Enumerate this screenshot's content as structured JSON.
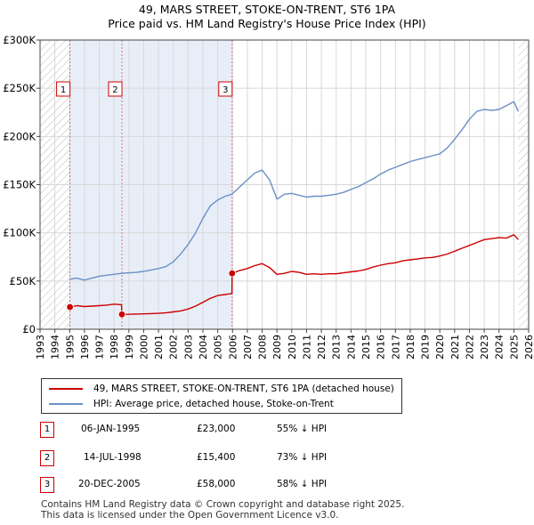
{
  "title": "49, MARS STREET, STOKE-ON-TRENT, ST6 1PA",
  "subtitle": "Price paid vs. HM Land Registry's House Price Index (HPI)",
  "colors": {
    "property": "#cc0000",
    "hpi": "#6a8fc7",
    "shade": "#e8eef8"
  },
  "chart_data": {
    "type": "line",
    "title": "Price paid vs. HM Land Registry's House Price Index (HPI)",
    "xlim": [
      1993,
      2026
    ],
    "ylim": [
      0,
      300000
    ],
    "y_ticks": [
      0,
      50000,
      100000,
      150000,
      200000,
      250000,
      300000
    ],
    "y_tick_labels": [
      "£0",
      "£50K",
      "£100K",
      "£150K",
      "£200K",
      "£250K",
      "£300K"
    ],
    "x_ticks": [
      1993,
      1994,
      1995,
      1996,
      1997,
      1998,
      1999,
      2000,
      2001,
      2002,
      2003,
      2004,
      2005,
      2006,
      2007,
      2008,
      2009,
      2010,
      2011,
      2012,
      2013,
      2014,
      2015,
      2016,
      2017,
      2018,
      2019,
      2020,
      2021,
      2022,
      2023,
      2024,
      2025,
      2026
    ],
    "x_tick_labels": [
      "1993",
      "1994",
      "1995",
      "1996",
      "1997",
      "1998",
      "1999",
      "2000",
      "2001",
      "2002",
      "2003",
      "2004",
      "2005",
      "2006",
      "2007",
      "2008",
      "2009",
      "2010",
      "2011",
      "2012",
      "2013",
      "2014",
      "2015",
      "2016",
      "2017",
      "2018",
      "2019",
      "2020",
      "2021",
      "2022",
      "2023",
      "2024",
      "2025",
      "2026"
    ],
    "series": [
      {
        "name": "49, MARS STREET, STOKE-ON-TRENT, ST6 1PA (detached house)",
        "x": [
          1995.02,
          1995.5,
          1996,
          1996.5,
          1997,
          1997.5,
          1998.0,
          1998.5,
          1998.53,
          1999,
          1999.5,
          2000,
          2000.5,
          2001,
          2001.5,
          2002,
          2002.5,
          2003,
          2003.5,
          2004,
          2004.5,
          2005,
          2005.5,
          2005.96,
          2005.97,
          2006.5,
          2007,
          2007.5,
          2008,
          2008.5,
          2009,
          2009.5,
          2010,
          2010.5,
          2011,
          2011.5,
          2012,
          2012.5,
          2013,
          2013.5,
          2014,
          2014.5,
          2015,
          2015.5,
          2016,
          2016.5,
          2017,
          2017.5,
          2018,
          2018.5,
          2019,
          2019.5,
          2020,
          2020.5,
          2021,
          2021.5,
          2022,
          2022.5,
          2023,
          2023.5,
          2024,
          2024.5,
          2025,
          2025.3
        ],
        "y": [
          23000,
          24500,
          23500,
          24000,
          24500,
          25000,
          26000,
          25500,
          15400,
          15500,
          15800,
          16000,
          16200,
          16500,
          17000,
          18000,
          19000,
          21000,
          24000,
          28000,
          32000,
          35000,
          36000,
          37000,
          58000,
          61000,
          63000,
          66000,
          68000,
          64000,
          57000,
          58000,
          60000,
          59000,
          57000,
          57500,
          57000,
          57500,
          57500,
          58500,
          59500,
          60500,
          62000,
          64500,
          66500,
          68000,
          69000,
          71000,
          72000,
          73000,
          74000,
          74500,
          76000,
          78000,
          81000,
          84000,
          87000,
          90000,
          93000,
          94000,
          95000,
          94500,
          98000,
          93000
        ]
      },
      {
        "name": "HPI: Average price, detached house, Stoke-on-Trent",
        "x": [
          1995.02,
          1995.5,
          1996,
          1996.5,
          1997,
          1997.5,
          1998,
          1998.5,
          1999,
          1999.5,
          2000,
          2000.5,
          2001,
          2001.5,
          2002,
          2002.5,
          2003,
          2003.5,
          2004,
          2004.5,
          2005,
          2005.5,
          2005.96,
          2006.5,
          2007,
          2007.5,
          2008,
          2008.5,
          2009,
          2009.5,
          2010,
          2010.5,
          2011,
          2011.5,
          2012,
          2012.5,
          2013,
          2013.5,
          2014,
          2014.5,
          2015,
          2015.5,
          2016,
          2016.5,
          2017,
          2017.5,
          2018,
          2018.5,
          2019,
          2019.5,
          2020,
          2020.5,
          2021,
          2021.5,
          2022,
          2022.5,
          2023,
          2023.5,
          2024,
          2024.5,
          2025,
          2025.3
        ],
        "y": [
          52000,
          53000,
          51000,
          53000,
          55000,
          56000,
          57000,
          58000,
          58500,
          59000,
          60000,
          61500,
          63000,
          65000,
          70000,
          78000,
          88000,
          100000,
          115000,
          128000,
          134000,
          138000,
          140000,
          148000,
          155000,
          162000,
          165000,
          155000,
          135000,
          140000,
          141000,
          139000,
          137000,
          138000,
          138000,
          139000,
          140000,
          142000,
          145000,
          148000,
          152000,
          156000,
          161000,
          165000,
          168000,
          171000,
          174000,
          176000,
          178000,
          180000,
          182000,
          188000,
          197000,
          207000,
          218000,
          226000,
          228000,
          227000,
          228000,
          232000,
          236000,
          226000
        ]
      }
    ],
    "sales": [
      {
        "label": "1",
        "x": 1995.02,
        "y": 23000
      },
      {
        "label": "2",
        "x": 1998.53,
        "y": 15400
      },
      {
        "label": "3",
        "x": 2005.97,
        "y": 58000
      }
    ],
    "hatch_regions": [
      [
        1993,
        1995.02
      ],
      [
        2025.3,
        2026
      ]
    ],
    "legend_position": "below"
  },
  "legend": [
    {
      "label": "49, MARS STREET, STOKE-ON-TRENT, ST6 1PA (detached house)"
    },
    {
      "label": "HPI: Average price, detached house, Stoke-on-Trent"
    }
  ],
  "transactions": [
    {
      "num": "1",
      "date": "06-JAN-1995",
      "price": "£23,000",
      "delta": "55% ↓ HPI"
    },
    {
      "num": "2",
      "date": "14-JUL-1998",
      "price": "£15,400",
      "delta": "73% ↓ HPI"
    },
    {
      "num": "3",
      "date": "20-DEC-2005",
      "price": "£58,000",
      "delta": "58% ↓ HPI"
    }
  ],
  "footer": {
    "line1": "Contains HM Land Registry data © Crown copyright and database right 2025.",
    "line2": "This data is licensed under the Open Government Licence v3.0."
  }
}
